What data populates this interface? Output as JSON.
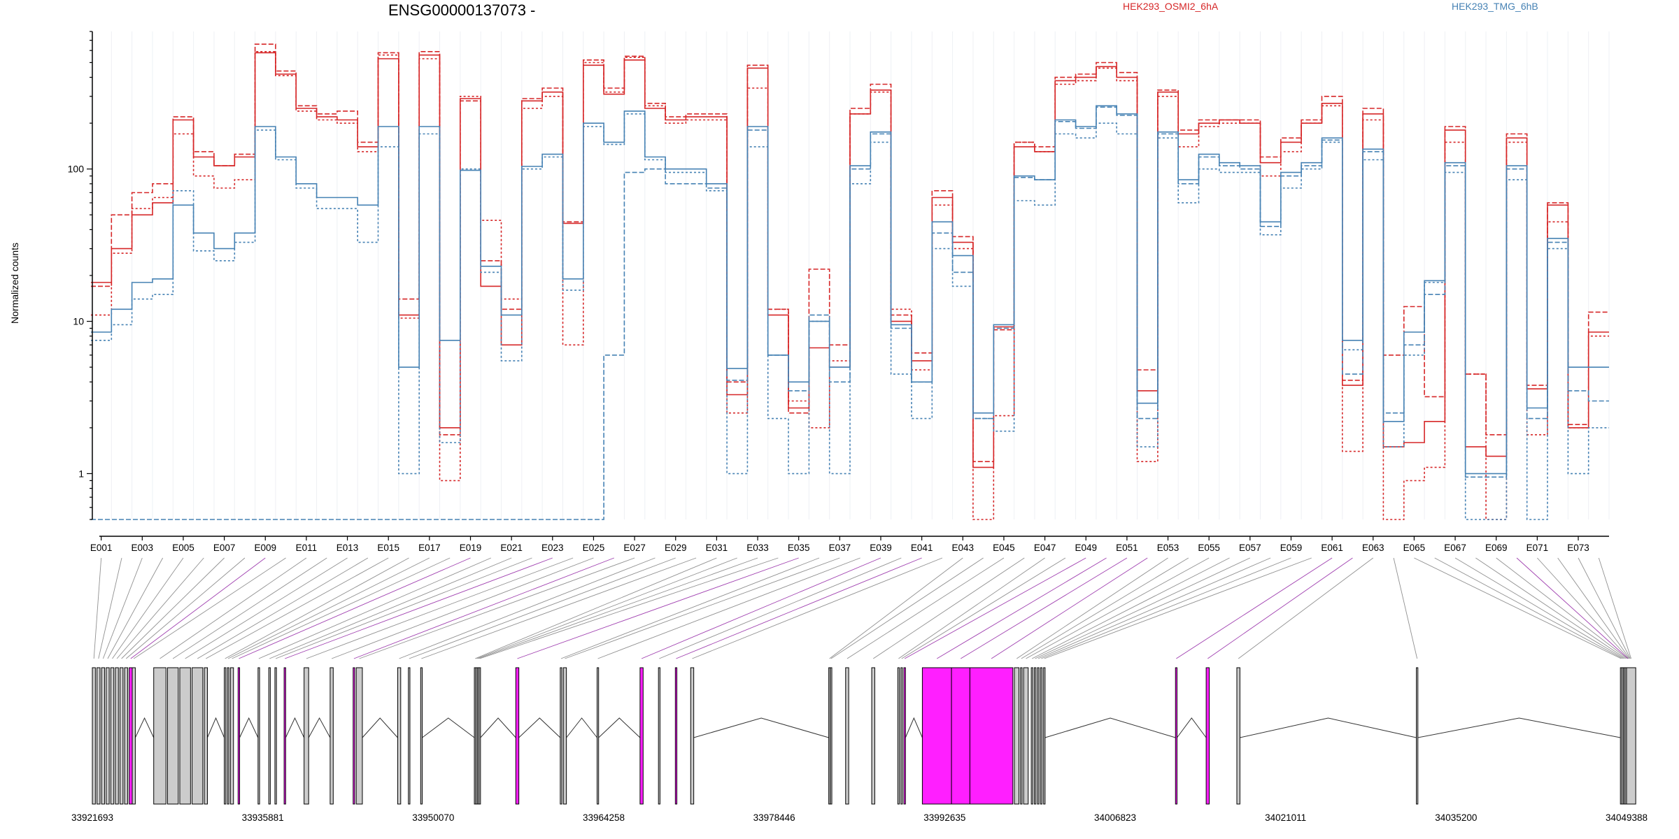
{
  "chart_data": {
    "type": "line",
    "title": "ENSG00000137073 -",
    "ylabel": "Normalized counts",
    "yscale": "log",
    "ylim": [
      0.5,
      800
    ],
    "yticks": [
      {
        "value": 1,
        "label": "1"
      },
      {
        "value": 10,
        "label": "10"
      },
      {
        "value": 100,
        "label": "100"
      }
    ],
    "grid": true,
    "legend_position": "top",
    "categories": [
      "E001",
      "E002",
      "E003",
      "E004",
      "E005",
      "E006",
      "E007",
      "E008",
      "E009",
      "E010",
      "E011",
      "E012",
      "E013",
      "E014",
      "E015",
      "E016",
      "E017",
      "E018",
      "E019",
      "E020",
      "E021",
      "E022",
      "E023",
      "E024",
      "E025",
      "E026",
      "E027",
      "E028",
      "E029",
      "E030",
      "E031",
      "E032",
      "E033",
      "E034",
      "E035",
      "E036",
      "E037",
      "E038",
      "E039",
      "E040",
      "E041",
      "E042",
      "E043",
      "E044",
      "E045",
      "E046",
      "E047",
      "E048",
      "E049",
      "E050",
      "E051",
      "E052",
      "E053",
      "E054",
      "E055",
      "E056",
      "E057",
      "E058",
      "E059",
      "E060",
      "E061",
      "E062",
      "E063",
      "E064",
      "E065",
      "E066",
      "E067",
      "E068",
      "E069",
      "E070",
      "E071",
      "E072",
      "E073",
      "E074"
    ],
    "x_tick_labels": [
      "E001",
      "E003",
      "E005",
      "E007",
      "E009",
      "E011",
      "E013",
      "E015",
      "E017",
      "E019",
      "E021",
      "E023",
      "E025",
      "E027",
      "E029",
      "E031",
      "E033",
      "E035",
      "E037",
      "E039",
      "E041",
      "E043",
      "E045",
      "E047",
      "E049",
      "E051",
      "E053",
      "E055",
      "E057",
      "E059",
      "E061",
      "E063",
      "E065",
      "E067",
      "E069",
      "E071",
      "E073"
    ],
    "series": [
      {
        "name": "HEK293_OSMI2_6hA",
        "color": "#d62728",
        "dash": "solid",
        "values": [
          18,
          30,
          50,
          60,
          210,
          120,
          105,
          120,
          580,
          420,
          250,
          220,
          210,
          140,
          530,
          11,
          560,
          2,
          290,
          17,
          7,
          280,
          320,
          44,
          480,
          310,
          520,
          250,
          210,
          220,
          220,
          3.3,
          460,
          11,
          2.7,
          6.7,
          5,
          230,
          330,
          10,
          5.5,
          65,
          33,
          1.1,
          9.2,
          140,
          130,
          380,
          400,
          470,
          400,
          3.5,
          320,
          170,
          200,
          210,
          200,
          110,
          150,
          200,
          270,
          3.8,
          230,
          1.5,
          1.6,
          2.2,
          180,
          1.5,
          1.3,
          160,
          3.6,
          58,
          2,
          8.5
        ]
      },
      {
        "name": "HEK293_OSMI2_6hA",
        "color": "#d62728",
        "dash": "dashed",
        "values": [
          17,
          50,
          70,
          80,
          220,
          130,
          105,
          125,
          660,
          440,
          260,
          230,
          240,
          150,
          580,
          14,
          590,
          1.8,
          280,
          25,
          12,
          290,
          340,
          45,
          520,
          340,
          550,
          270,
          220,
          230,
          230,
          4,
          480,
          12,
          2.5,
          22,
          7,
          250,
          360,
          11,
          6.2,
          72,
          36,
          1.2,
          8.8,
          150,
          140,
          400,
          420,
          500,
          430,
          4.8,
          330,
          180,
          210,
          210,
          210,
          120,
          160,
          210,
          300,
          4.1,
          250,
          6,
          12.5,
          3.2,
          190,
          4.5,
          1.8,
          170,
          3.8,
          60,
          2.1,
          11.5
        ]
      },
      {
        "name": "HEK293_OSMI2_6hA",
        "color": "#d62728",
        "dash": "dotted",
        "values": [
          11,
          28,
          55,
          65,
          170,
          90,
          75,
          85,
          590,
          410,
          240,
          210,
          200,
          130,
          560,
          10.5,
          530,
          0.9,
          300,
          46,
          14,
          250,
          300,
          7,
          500,
          320,
          540,
          260,
          200,
          210,
          210,
          2.5,
          340,
          12,
          3,
          2,
          5.5,
          230,
          320,
          12,
          4.8,
          58,
          30,
          0.5,
          2.4,
          150,
          130,
          360,
          380,
          460,
          380,
          1.2,
          300,
          140,
          190,
          200,
          200,
          90,
          130,
          200,
          260,
          1.4,
          210,
          0.5,
          0.9,
          1.1,
          150,
          4.5,
          0.5,
          150,
          1.8,
          45,
          2,
          8
        ]
      },
      {
        "name": "HEK293_TMG_6hB",
        "color": "#4682b4",
        "dash": "solid",
        "values": [
          8.5,
          12,
          18,
          19,
          58,
          38,
          30,
          38,
          190,
          120,
          80,
          65,
          65,
          58,
          190,
          5,
          190,
          7.5,
          98,
          23,
          11,
          104,
          125,
          19,
          200,
          150,
          240,
          120,
          100,
          100,
          80,
          4.9,
          190,
          6,
          4,
          10,
          5,
          105,
          175,
          9.5,
          4,
          45,
          27,
          2.5,
          9.5,
          90,
          85,
          210,
          190,
          260,
          230,
          2.9,
          175,
          85,
          125,
          110,
          105,
          45,
          95,
          110,
          160,
          7.5,
          135,
          2.2,
          8.5,
          18.5,
          110,
          1,
          1,
          105,
          2.7,
          35,
          5,
          5
        ]
      },
      {
        "name": "HEK293_TMG_6hB",
        "color": "#4682b4",
        "dash": "dashed",
        "values": [
          0.5,
          0.5,
          0.5,
          0.5,
          0.5,
          0.5,
          0.5,
          0.5,
          0.5,
          0.5,
          0.5,
          0.5,
          0.5,
          0.5,
          0.5,
          0.5,
          0.5,
          0.5,
          0.5,
          0.5,
          0.5,
          0.5,
          0.5,
          0.5,
          0.5,
          6,
          95,
          100,
          80,
          80,
          75,
          4.1,
          180,
          6,
          3.5,
          11,
          4,
          100,
          170,
          9,
          4,
          38,
          21,
          2.3,
          9,
          88,
          85,
          205,
          185,
          255,
          225,
          2.3,
          170,
          80,
          120,
          105,
          100,
          42,
          90,
          105,
          155,
          4.5,
          130,
          2.5,
          7,
          15,
          105,
          0.95,
          0.95,
          100,
          2.3,
          33,
          3.5,
          3
        ]
      },
      {
        "name": "HEK293_TMG_6hB",
        "color": "#4682b4",
        "dash": "dotted",
        "values": [
          7.5,
          9.5,
          14,
          15,
          72,
          29,
          25,
          33,
          180,
          115,
          75,
          55,
          55,
          33,
          140,
          1,
          170,
          1.6,
          100,
          21,
          5.5,
          100,
          120,
          16,
          190,
          145,
          230,
          115,
          95,
          95,
          72,
          1,
          140,
          2.3,
          1,
          10,
          1,
          80,
          150,
          4.5,
          2.3,
          30,
          17,
          2.3,
          1.9,
          62,
          58,
          170,
          160,
          200,
          170,
          1.5,
          160,
          60,
          100,
          95,
          95,
          37,
          75,
          100,
          150,
          6.5,
          115,
          1.5,
          6,
          18,
          95,
          0.5,
          0.5,
          85,
          0.5,
          30,
          1,
          2
        ]
      }
    ],
    "gene_structure": {
      "coord_labels": [
        "33921693",
        "33935881",
        "33950070",
        "33964258",
        "33978446",
        "33992635",
        "34006823",
        "34021011",
        "34035200",
        "34049388"
      ],
      "highlighted_exons": [
        "E009",
        "E019",
        "E023",
        "E026",
        "E035",
        "E039",
        "E041",
        "E049",
        "E050",
        "E051",
        "E052",
        "E061",
        "E062",
        "E070"
      ],
      "exon_fill": "#cccccc",
      "highlight_fill": "#ff1fff"
    }
  }
}
